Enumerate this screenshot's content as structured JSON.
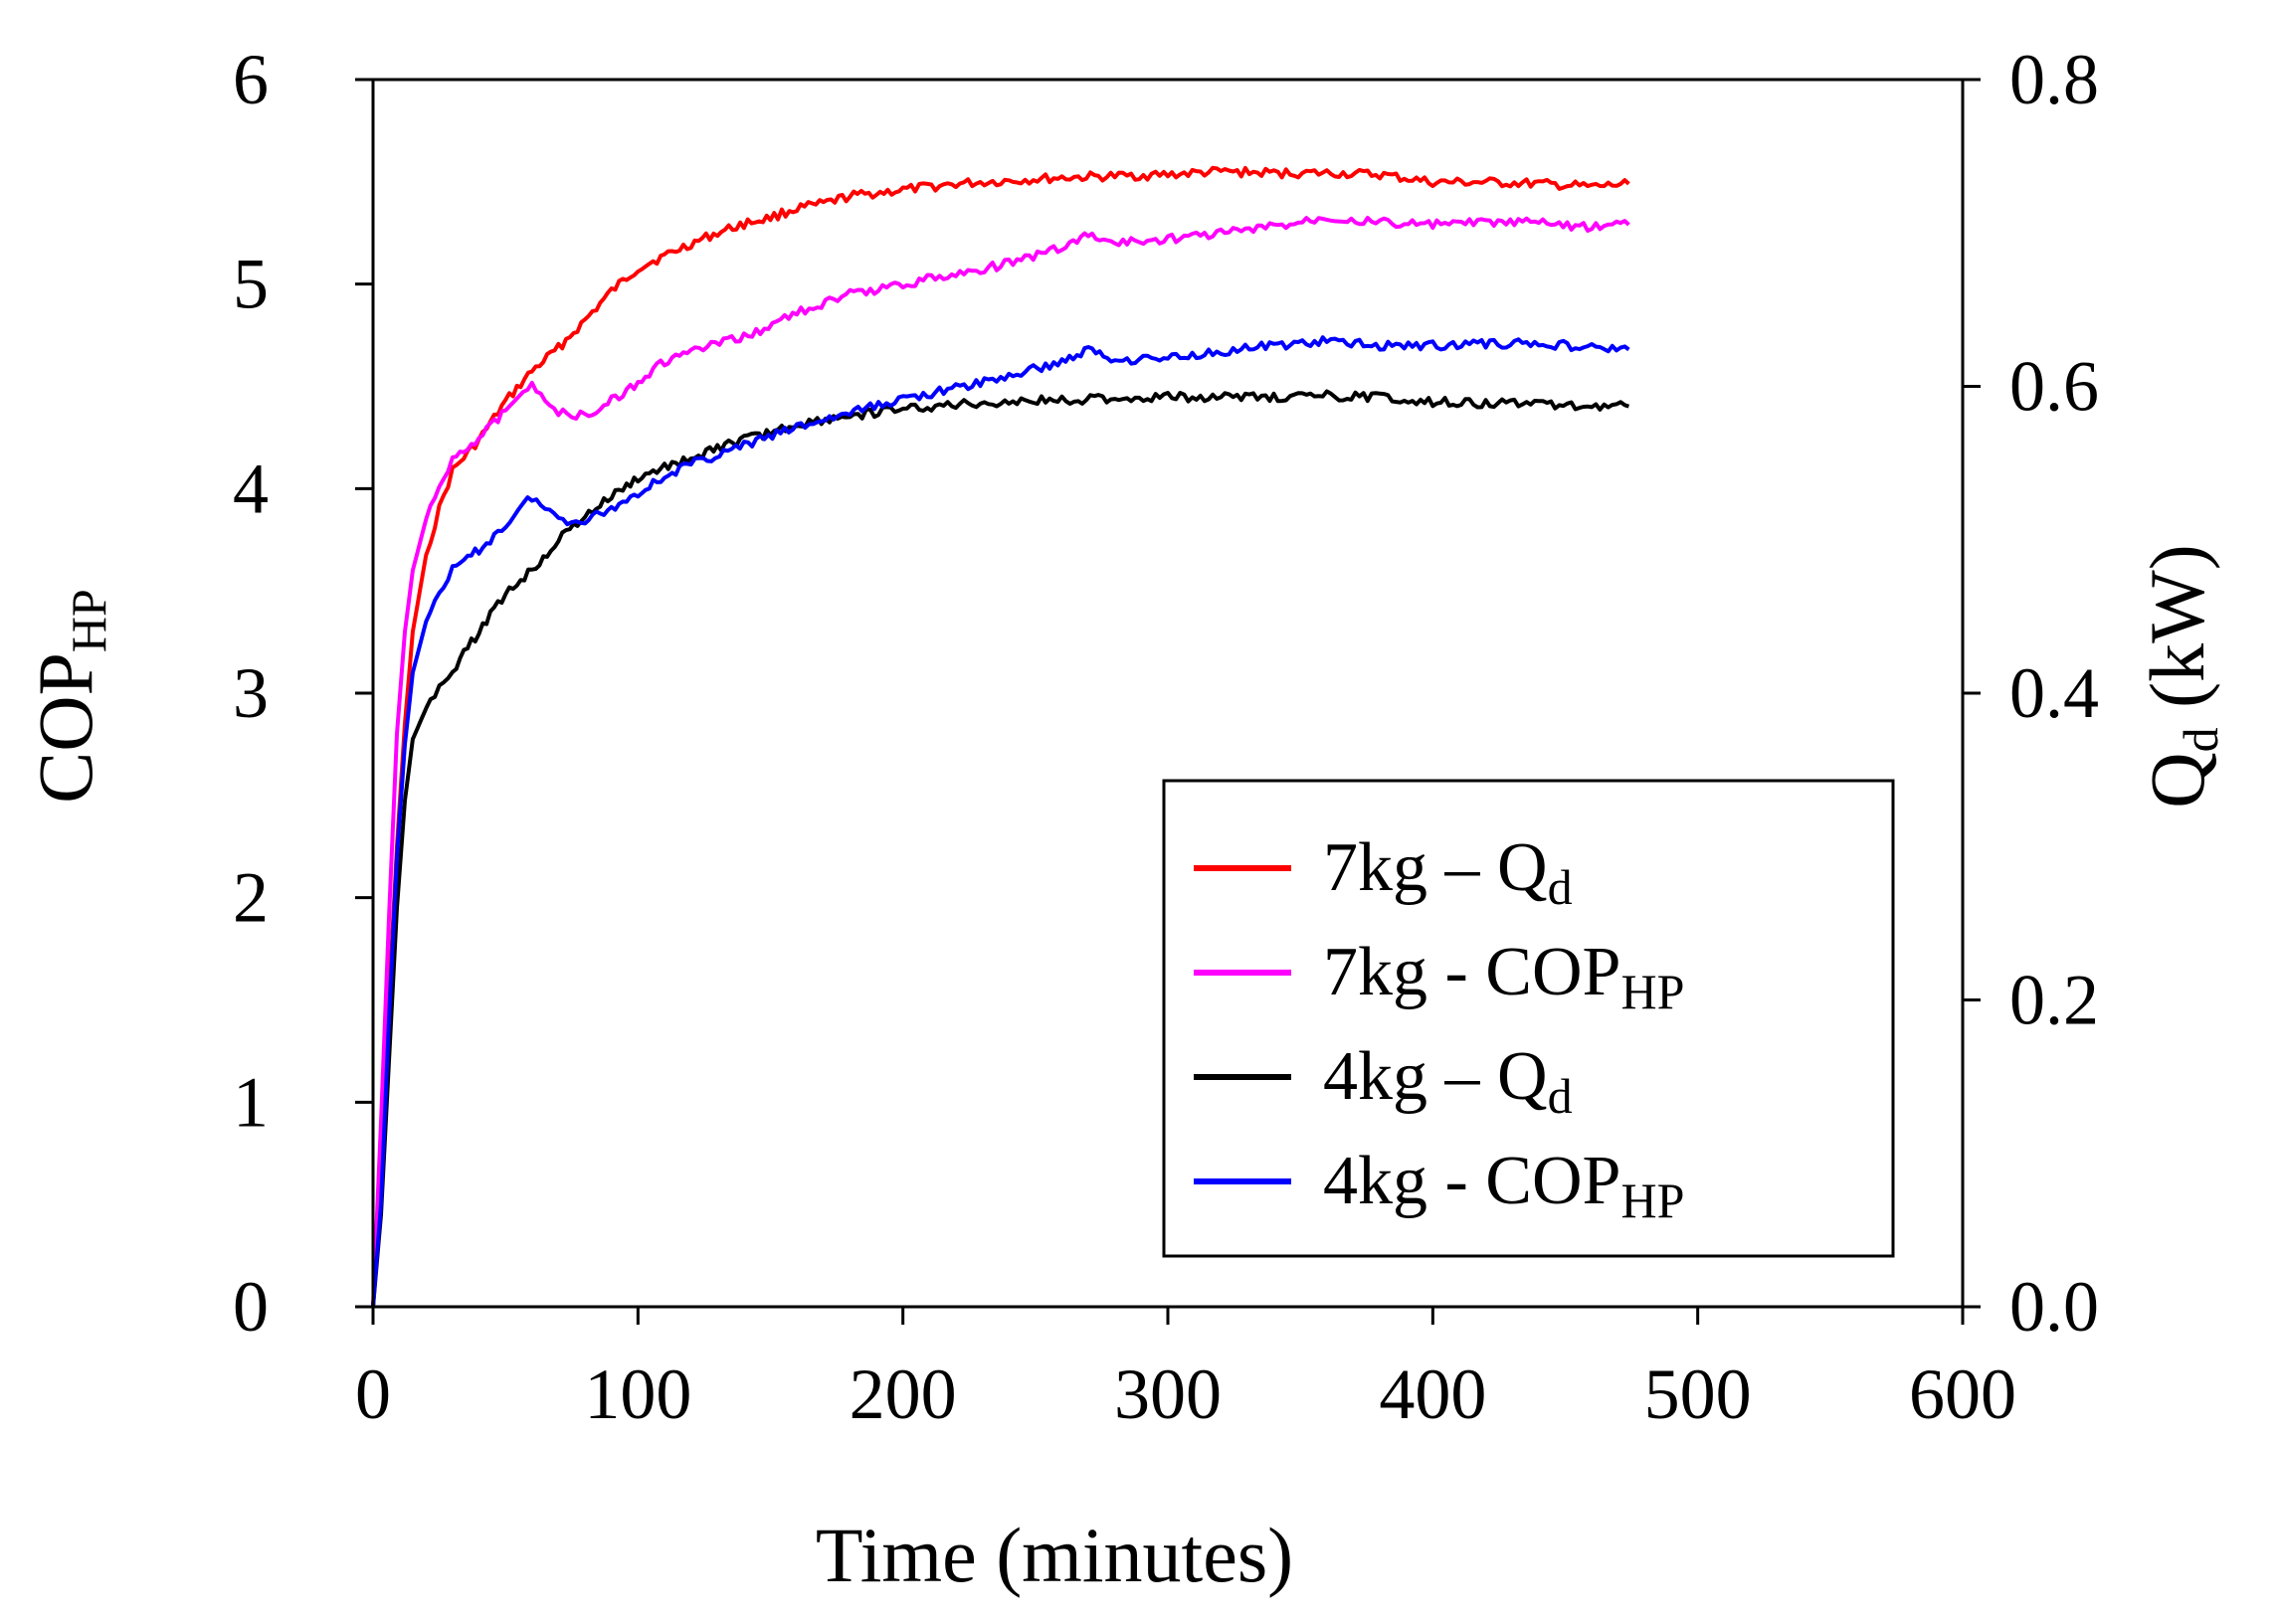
{
  "chart_data": {
    "type": "line",
    "title": "",
    "x_axis": {
      "label": "Time (minutes)",
      "range": [
        0,
        600
      ],
      "ticks": [
        "0",
        "100",
        "200",
        "300",
        "400",
        "500",
        "600"
      ]
    },
    "y_axis_left": {
      "label_main": "COP",
      "label_sub": "HP",
      "range": [
        0,
        6
      ],
      "ticks": [
        "0",
        "1",
        "2",
        "3",
        "4",
        "5",
        "6"
      ]
    },
    "y_axis_right": {
      "label_main": "Q",
      "label_sub": "d",
      "label_unit": " (kW)",
      "range": [
        0,
        0.8
      ],
      "ticks": [
        "0.0",
        "0.2",
        "0.4",
        "0.6",
        "0.8"
      ]
    },
    "grid": false,
    "legend": {
      "position": "bottom-right"
    },
    "series": [
      {
        "key": "red",
        "name_main": "7kg – Q",
        "name_sub": "d",
        "color": "#ff0000",
        "axis": "right",
        "x": [
          0,
          3,
          6,
          9,
          12,
          15,
          20,
          25,
          30,
          40,
          50,
          60,
          70,
          80,
          90,
          100,
          110,
          120,
          130,
          140,
          150,
          160,
          170,
          180,
          190,
          200,
          220,
          240,
          260,
          280,
          300,
          320,
          340,
          360,
          380,
          400,
          420,
          440,
          460,
          474
        ],
        "y": [
          0.0,
          0.08,
          0.2,
          0.3,
          0.38,
          0.44,
          0.49,
          0.52,
          0.545,
          0.565,
          0.59,
          0.61,
          0.625,
          0.643,
          0.662,
          0.677,
          0.685,
          0.693,
          0.7,
          0.706,
          0.71,
          0.716,
          0.719,
          0.724,
          0.726,
          0.728,
          0.732,
          0.734,
          0.736,
          0.737,
          0.738,
          0.74,
          0.739,
          0.739,
          0.738,
          0.733,
          0.733,
          0.732,
          0.73,
          0.732
        ]
      },
      {
        "key": "magenta",
        "name_main": "7kg - COP",
        "name_sub": "HP",
        "color": "#ff00ff",
        "axis": "left",
        "x": [
          0,
          3,
          6,
          9,
          12,
          15,
          20,
          25,
          30,
          40,
          50,
          55,
          60,
          65,
          70,
          75,
          80,
          90,
          100,
          110,
          120,
          140,
          160,
          180,
          200,
          220,
          240,
          260,
          270,
          280,
          300,
          320,
          340,
          360,
          380,
          400,
          420,
          440,
          460,
          474
        ],
        "y": [
          0.0,
          0.9,
          1.9,
          2.8,
          3.3,
          3.6,
          3.85,
          4.0,
          4.15,
          4.25,
          4.38,
          4.47,
          4.5,
          4.42,
          4.38,
          4.35,
          4.36,
          4.43,
          4.52,
          4.62,
          4.67,
          4.74,
          4.86,
          4.95,
          5.0,
          5.05,
          5.1,
          5.18,
          5.24,
          5.2,
          5.22,
          5.25,
          5.28,
          5.33,
          5.3,
          5.29,
          5.3,
          5.3,
          5.28,
          5.29
        ]
      },
      {
        "key": "black",
        "name_main": "4kg – Q",
        "name_sub": "d",
        "color": "#000000",
        "axis": "right",
        "x": [
          0,
          3,
          6,
          9,
          12,
          15,
          20,
          25,
          30,
          40,
          50,
          60,
          70,
          80,
          90,
          100,
          110,
          120,
          130,
          140,
          150,
          160,
          180,
          200,
          220,
          240,
          260,
          280,
          300,
          320,
          340,
          360,
          380,
          400,
          420,
          440,
          460,
          474
        ],
        "y": [
          0.0,
          0.06,
          0.16,
          0.26,
          0.33,
          0.37,
          0.39,
          0.405,
          0.415,
          0.44,
          0.465,
          0.48,
          0.5,
          0.515,
          0.528,
          0.54,
          0.547,
          0.553,
          0.56,
          0.565,
          0.57,
          0.575,
          0.581,
          0.585,
          0.588,
          0.59,
          0.591,
          0.592,
          0.593,
          0.593,
          0.593,
          0.594,
          0.593,
          0.59,
          0.589,
          0.589,
          0.587,
          0.587
        ]
      },
      {
        "key": "blue",
        "name_main": "4kg - COP",
        "name_sub": "HP",
        "color": "#0000ff",
        "axis": "left",
        "x": [
          0,
          3,
          6,
          9,
          12,
          15,
          20,
          25,
          30,
          40,
          50,
          55,
          60,
          65,
          70,
          75,
          80,
          90,
          100,
          110,
          120,
          140,
          160,
          180,
          200,
          220,
          240,
          260,
          270,
          280,
          300,
          320,
          340,
          360,
          380,
          400,
          420,
          440,
          460,
          474
        ],
        "y": [
          0.0,
          0.5,
          1.4,
          2.2,
          2.75,
          3.1,
          3.35,
          3.5,
          3.6,
          3.7,
          3.82,
          3.9,
          3.96,
          3.9,
          3.86,
          3.84,
          3.85,
          3.9,
          3.98,
          4.06,
          4.12,
          4.21,
          4.3,
          4.37,
          4.44,
          4.49,
          4.55,
          4.62,
          4.68,
          4.63,
          4.64,
          4.67,
          4.7,
          4.72,
          4.7,
          4.7,
          4.71,
          4.71,
          4.69,
          4.68
        ]
      }
    ]
  }
}
